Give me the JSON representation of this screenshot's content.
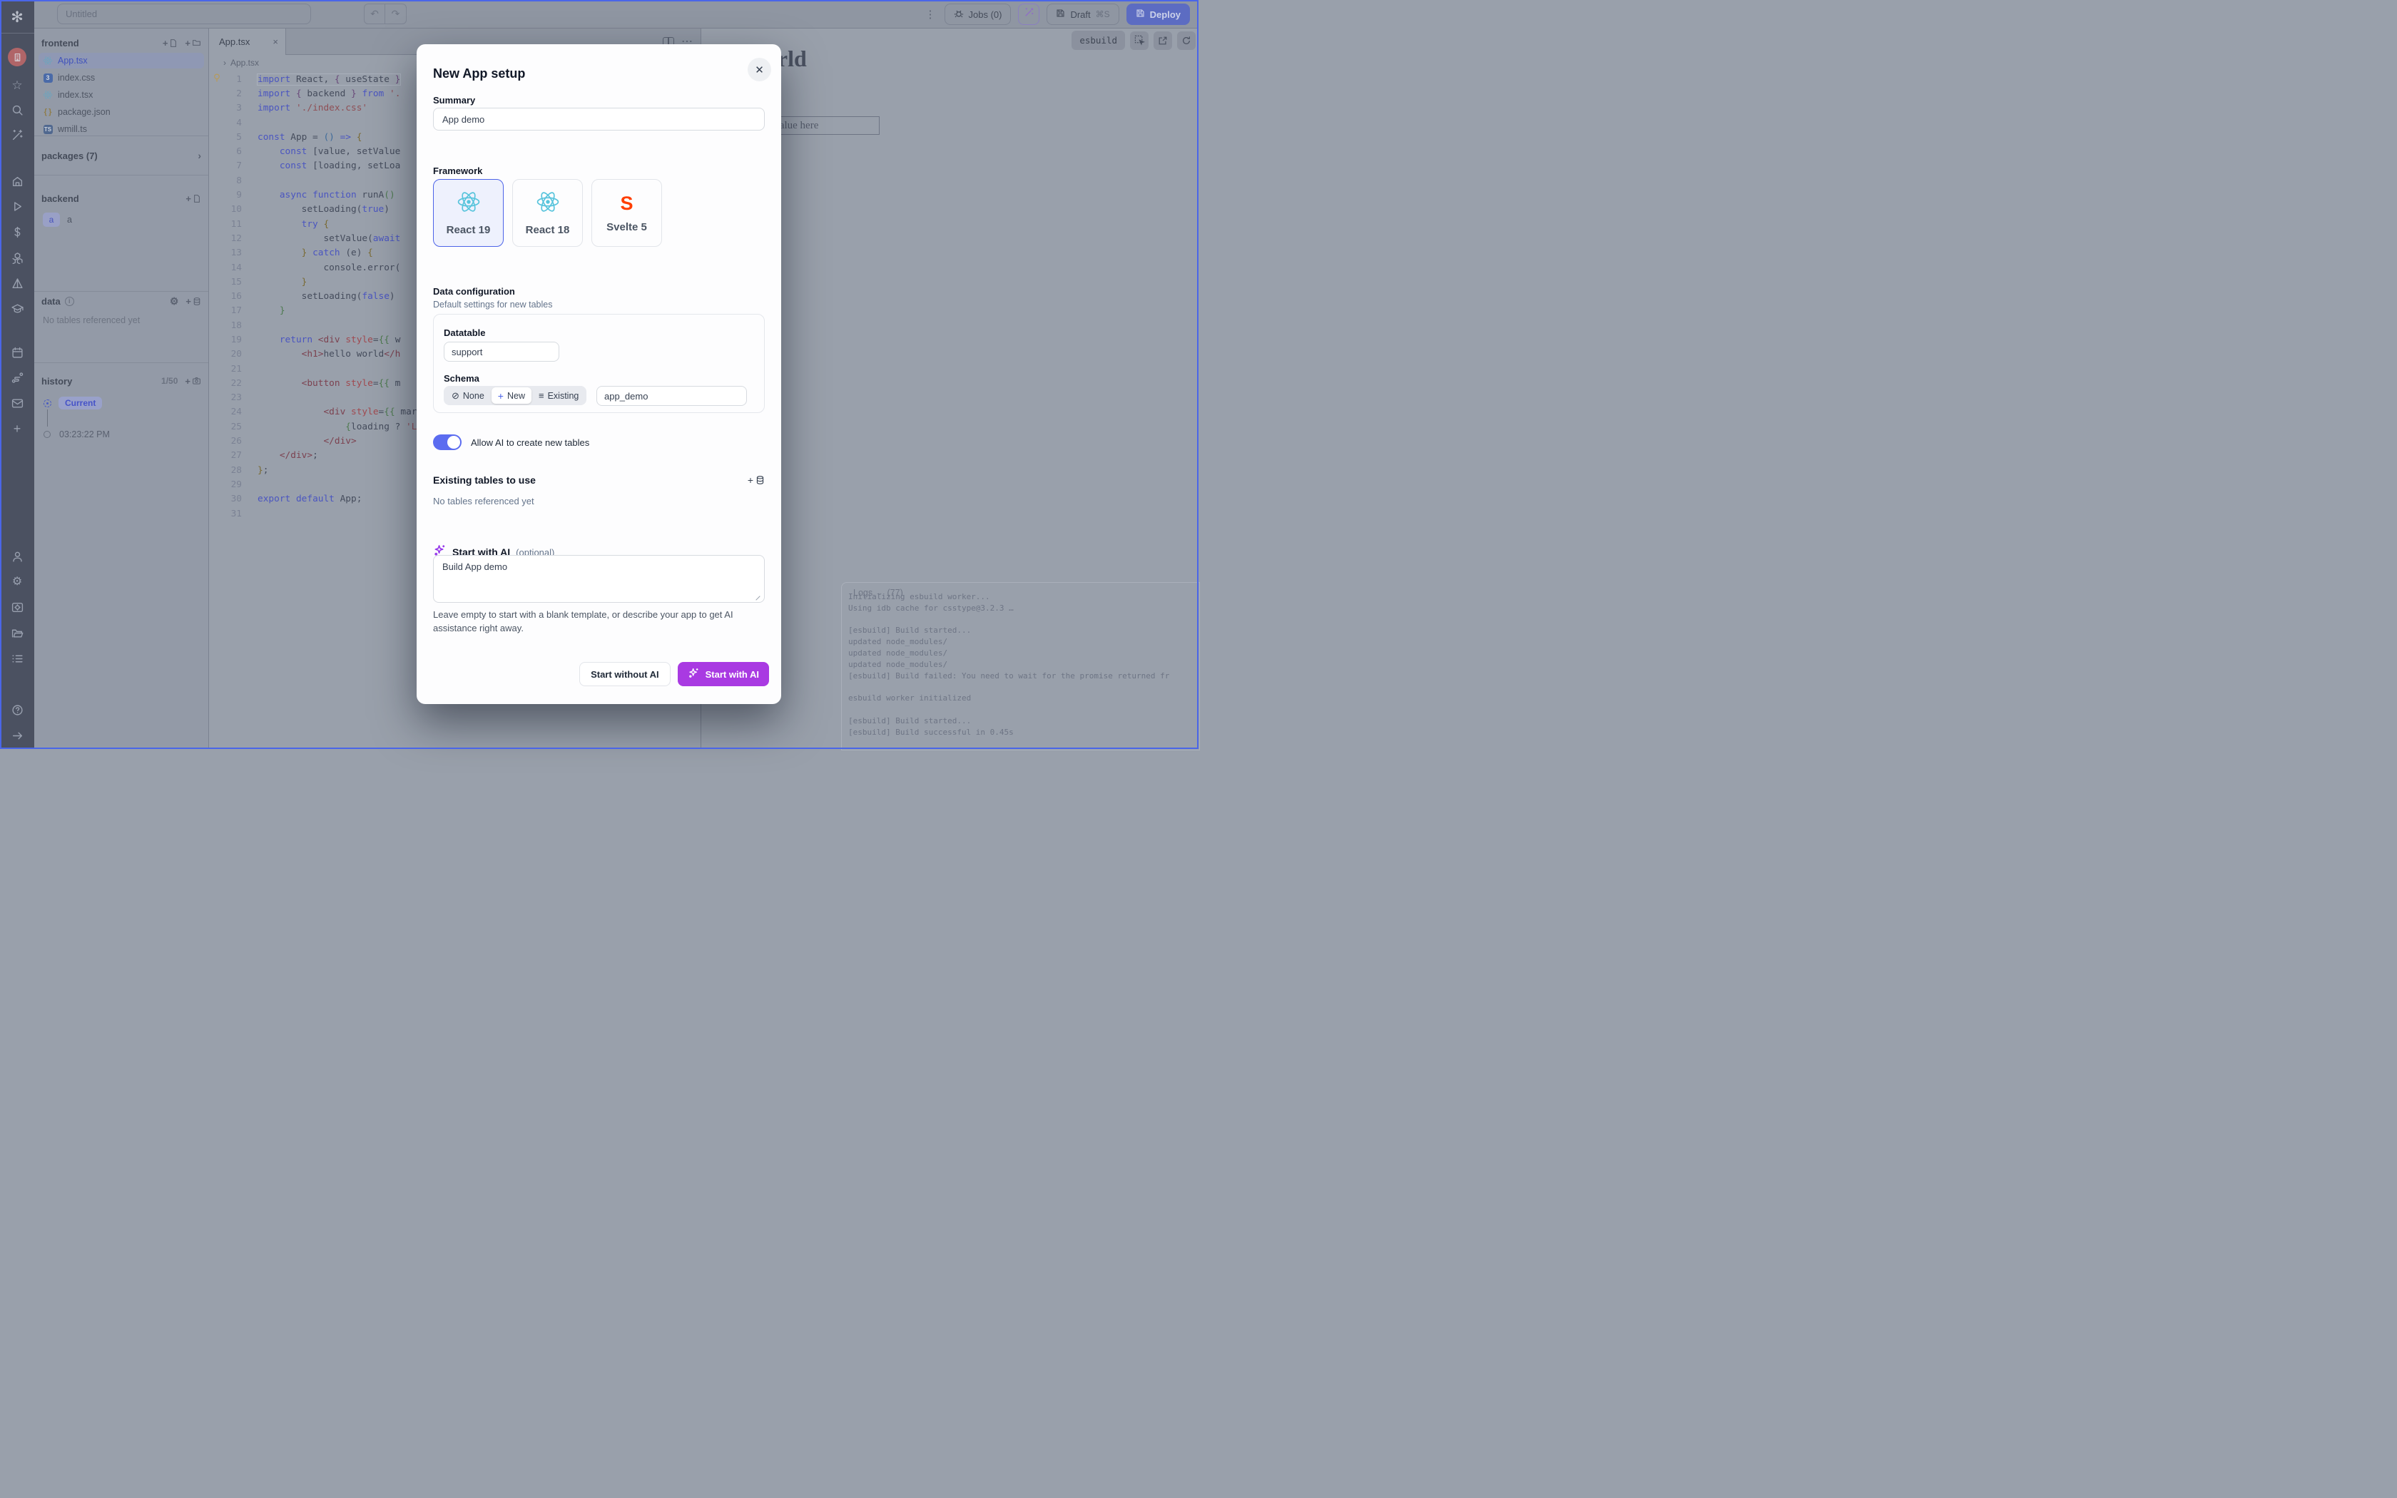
{
  "colors": {
    "accent_blue": "#5b6cf0",
    "accent_purple": "#a93ae2",
    "react_cyan": "#58c4dc",
    "svelte_orange": "#ff3e00",
    "deploy_blue": "#5c6cc2",
    "window_border": "#4a66e8"
  },
  "rail": {
    "items": [
      "windmill-logo",
      "workspace-avatar",
      "star-icon",
      "search-icon",
      "magic-wand-icon",
      "home-icon",
      "runs-play-icon",
      "dollar-icon",
      "apps-cubes-icon",
      "prism-icon",
      "graduation-cap-icon",
      "schedule-calendar-icon",
      "flows-route-icon",
      "mail-icon",
      "plus-icon",
      "user-icon",
      "settings-gear-icon",
      "workers-icon",
      "folders-icon",
      "resources-list-icon",
      "help-icon",
      "collapse-arrow-icon"
    ]
  },
  "topbar": {
    "app_title_value": "Untitled",
    "jobs_label": "Jobs (0)",
    "draft_label": "Draft",
    "draft_shortcut": "⌘S",
    "deploy_label": "Deploy"
  },
  "explorer": {
    "frontend_title": "frontend",
    "files": [
      {
        "name": "App.tsx",
        "icon": "react",
        "selected": true
      },
      {
        "name": "index.css",
        "icon": "css",
        "selected": false
      },
      {
        "name": "index.tsx",
        "icon": "react",
        "selected": false
      },
      {
        "name": "package.json",
        "icon": "braces",
        "selected": false
      },
      {
        "name": "wmill.ts",
        "icon": "ts",
        "selected": false
      }
    ],
    "packages_label": "packages (7)",
    "backend_title": "backend",
    "backend_item_badge": "a",
    "backend_item_name": "a",
    "data_title": "data",
    "data_empty": "No tables referenced yet",
    "history_title": "history",
    "history_count": "1/50",
    "history_current_label": "Current",
    "history_time": "03:23:22 PM"
  },
  "editor": {
    "tab_label": "App.tsx",
    "breadcrumb": "App.tsx",
    "lines": [
      {
        "n": 1,
        "bulb": true,
        "cur": true,
        "segs": [
          [
            "kw",
            "import"
          ],
          [
            "pl",
            " React, "
          ],
          [
            "br2",
            "{"
          ],
          [
            "pl",
            " useState "
          ],
          [
            "br2",
            "}"
          ]
        ]
      },
      {
        "n": 2,
        "segs": [
          [
            "kw",
            "import"
          ],
          [
            "pl",
            " "
          ],
          [
            "br2",
            "{"
          ],
          [
            "pl",
            " backend "
          ],
          [
            "br2",
            "}"
          ],
          [
            "kw",
            " from"
          ],
          [
            "pl",
            " "
          ],
          [
            "str",
            "'."
          ]
        ]
      },
      {
        "n": 3,
        "segs": [
          [
            "kw",
            "import"
          ],
          [
            "pl",
            " "
          ],
          [
            "str",
            "'./index.css'"
          ]
        ]
      },
      {
        "n": 4,
        "segs": []
      },
      {
        "n": 5,
        "segs": [
          [
            "kw",
            "const"
          ],
          [
            "pl",
            " App = "
          ],
          [
            "br3",
            "()"
          ],
          [
            "pl",
            " "
          ],
          [
            "kw",
            "=>"
          ],
          [
            "pl",
            " "
          ],
          [
            "br1",
            "{"
          ]
        ]
      },
      {
        "n": 6,
        "segs": [
          [
            "pl",
            "    "
          ],
          [
            "kw",
            "const"
          ],
          [
            "pl",
            " [value, setValue"
          ]
        ]
      },
      {
        "n": 7,
        "segs": [
          [
            "pl",
            "    "
          ],
          [
            "kw",
            "const"
          ],
          [
            "pl",
            " [loading, setLoa"
          ]
        ]
      },
      {
        "n": 8,
        "segs": []
      },
      {
        "n": 9,
        "segs": [
          [
            "pl",
            "    "
          ],
          [
            "kw",
            "async"
          ],
          [
            "pl",
            " "
          ],
          [
            "kw",
            "function"
          ],
          [
            "pl",
            " runA"
          ],
          [
            "grn",
            "()"
          ]
        ]
      },
      {
        "n": 10,
        "segs": [
          [
            "pl",
            "        setLoading("
          ],
          [
            "bool",
            "true"
          ],
          [
            "pl",
            ")"
          ]
        ]
      },
      {
        "n": 11,
        "segs": [
          [
            "pl",
            "        "
          ],
          [
            "kw",
            "try"
          ],
          [
            "pl",
            " "
          ],
          [
            "br1",
            "{"
          ]
        ]
      },
      {
        "n": 12,
        "segs": [
          [
            "pl",
            "            setValue("
          ],
          [
            "kw",
            "await"
          ]
        ]
      },
      {
        "n": 13,
        "segs": [
          [
            "pl",
            "        "
          ],
          [
            "br1",
            "}"
          ],
          [
            "pl",
            " "
          ],
          [
            "kw",
            "catch"
          ],
          [
            "pl",
            " (e) "
          ],
          [
            "br1",
            "{"
          ]
        ]
      },
      {
        "n": 14,
        "segs": [
          [
            "pl",
            "            console.error("
          ]
        ]
      },
      {
        "n": 15,
        "segs": [
          [
            "pl",
            "        "
          ],
          [
            "br1",
            "}"
          ]
        ]
      },
      {
        "n": 16,
        "segs": [
          [
            "pl",
            "        setLoading("
          ],
          [
            "bool",
            "false"
          ],
          [
            "pl",
            ")"
          ]
        ]
      },
      {
        "n": 17,
        "segs": [
          [
            "pl",
            "    "
          ],
          [
            "grn",
            "}"
          ]
        ]
      },
      {
        "n": 18,
        "segs": []
      },
      {
        "n": 19,
        "segs": [
          [
            "pl",
            "    "
          ],
          [
            "kw",
            "return"
          ],
          [
            "pl",
            " "
          ],
          [
            "tag",
            "<div"
          ],
          [
            "pl",
            " "
          ],
          [
            "attr",
            "style"
          ],
          [
            "pl",
            "="
          ],
          [
            "grn",
            "{{"
          ],
          [
            "pl",
            " w"
          ]
        ]
      },
      {
        "n": 20,
        "segs": [
          [
            "pl",
            "        "
          ],
          [
            "tag",
            "<h1>"
          ],
          [
            "pl",
            "hello world"
          ],
          [
            "tag",
            "</h"
          ]
        ]
      },
      {
        "n": 21,
        "segs": []
      },
      {
        "n": 22,
        "segs": [
          [
            "pl",
            "        "
          ],
          [
            "tag",
            "<button"
          ],
          [
            "pl",
            " "
          ],
          [
            "attr",
            "style"
          ],
          [
            "pl",
            "="
          ],
          [
            "grn",
            "{{"
          ],
          [
            "pl",
            " m"
          ]
        ]
      },
      {
        "n": 23,
        "segs": []
      },
      {
        "n": 24,
        "segs": [
          [
            "pl",
            "            "
          ],
          [
            "tag",
            "<div"
          ],
          [
            "pl",
            " "
          ],
          [
            "attr",
            "style"
          ],
          [
            "pl",
            "="
          ],
          [
            "grn",
            "{{"
          ],
          [
            "pl",
            " marg"
          ]
        ]
      },
      {
        "n": 25,
        "segs": [
          [
            "pl",
            "                "
          ],
          [
            "grn",
            "{"
          ],
          [
            "pl",
            "loading ? "
          ],
          [
            "str",
            "'Lo"
          ]
        ]
      },
      {
        "n": 26,
        "segs": [
          [
            "pl",
            "            "
          ],
          [
            "tag",
            "</div>"
          ]
        ]
      },
      {
        "n": 27,
        "segs": [
          [
            "pl",
            "    "
          ],
          [
            "tag",
            "</div>"
          ],
          [
            "pl",
            ";"
          ]
        ]
      },
      {
        "n": 28,
        "segs": [
          [
            "br1",
            "}"
          ],
          [
            "pl",
            ";"
          ]
        ]
      },
      {
        "n": 29,
        "segs": []
      },
      {
        "n": 30,
        "segs": [
          [
            "kw",
            "export"
          ],
          [
            "pl",
            " "
          ],
          [
            "kw",
            "default"
          ],
          [
            "pl",
            " App;"
          ]
        ]
      },
      {
        "n": 31,
        "segs": []
      }
    ]
  },
  "preview": {
    "esbuild_badge": "esbuild",
    "heading": "hello world",
    "input_value": "to see value here"
  },
  "logs": {
    "title": "Logs",
    "count": "(77)",
    "lines": [
      "Initializing esbuild worker...",
      "Using idb cache for csstype@3.2.3 …",
      "",
      "[esbuild] Build started...",
      "updated node_modules/",
      "updated node_modules/",
      "updated node_modules/",
      "[esbuild] Build failed: You need to wait for the promise returned fr",
      "",
      "esbuild worker initialized",
      "",
      "[esbuild] Build started...",
      "[esbuild] Build successful in 0.45s"
    ]
  },
  "modal": {
    "title": "New App setup",
    "summary_label": "Summary",
    "summary_value": "App demo",
    "framework_label": "Framework",
    "frameworks": [
      {
        "label": "React 19",
        "icon": "react",
        "selected": true
      },
      {
        "label": "React 18",
        "icon": "react",
        "selected": false
      },
      {
        "label": "Svelte 5",
        "icon": "svelte",
        "selected": false
      }
    ],
    "data_config_title": "Data configuration",
    "data_config_sub": "Default settings for new tables",
    "datatable_label": "Datatable",
    "datatable_value": "support",
    "schema_label": "Schema",
    "schema_options": [
      {
        "label": "None",
        "icon": "slash",
        "selected": false
      },
      {
        "label": "New",
        "icon": "plus",
        "selected": true
      },
      {
        "label": "Existing",
        "icon": "list",
        "selected": false
      }
    ],
    "schema_value": "app_demo",
    "toggle_label": "Allow AI to create new tables",
    "existing_title": "Existing tables to use",
    "existing_empty": "No tables referenced yet",
    "ai_title": "Start with AI",
    "ai_optional": "(optional)",
    "ai_value": "Build App demo",
    "ai_help": "Leave empty to start with a blank template, or describe your app to get AI assistance right away.",
    "btn_secondary": "Start without AI",
    "btn_primary": "Start with AI"
  }
}
